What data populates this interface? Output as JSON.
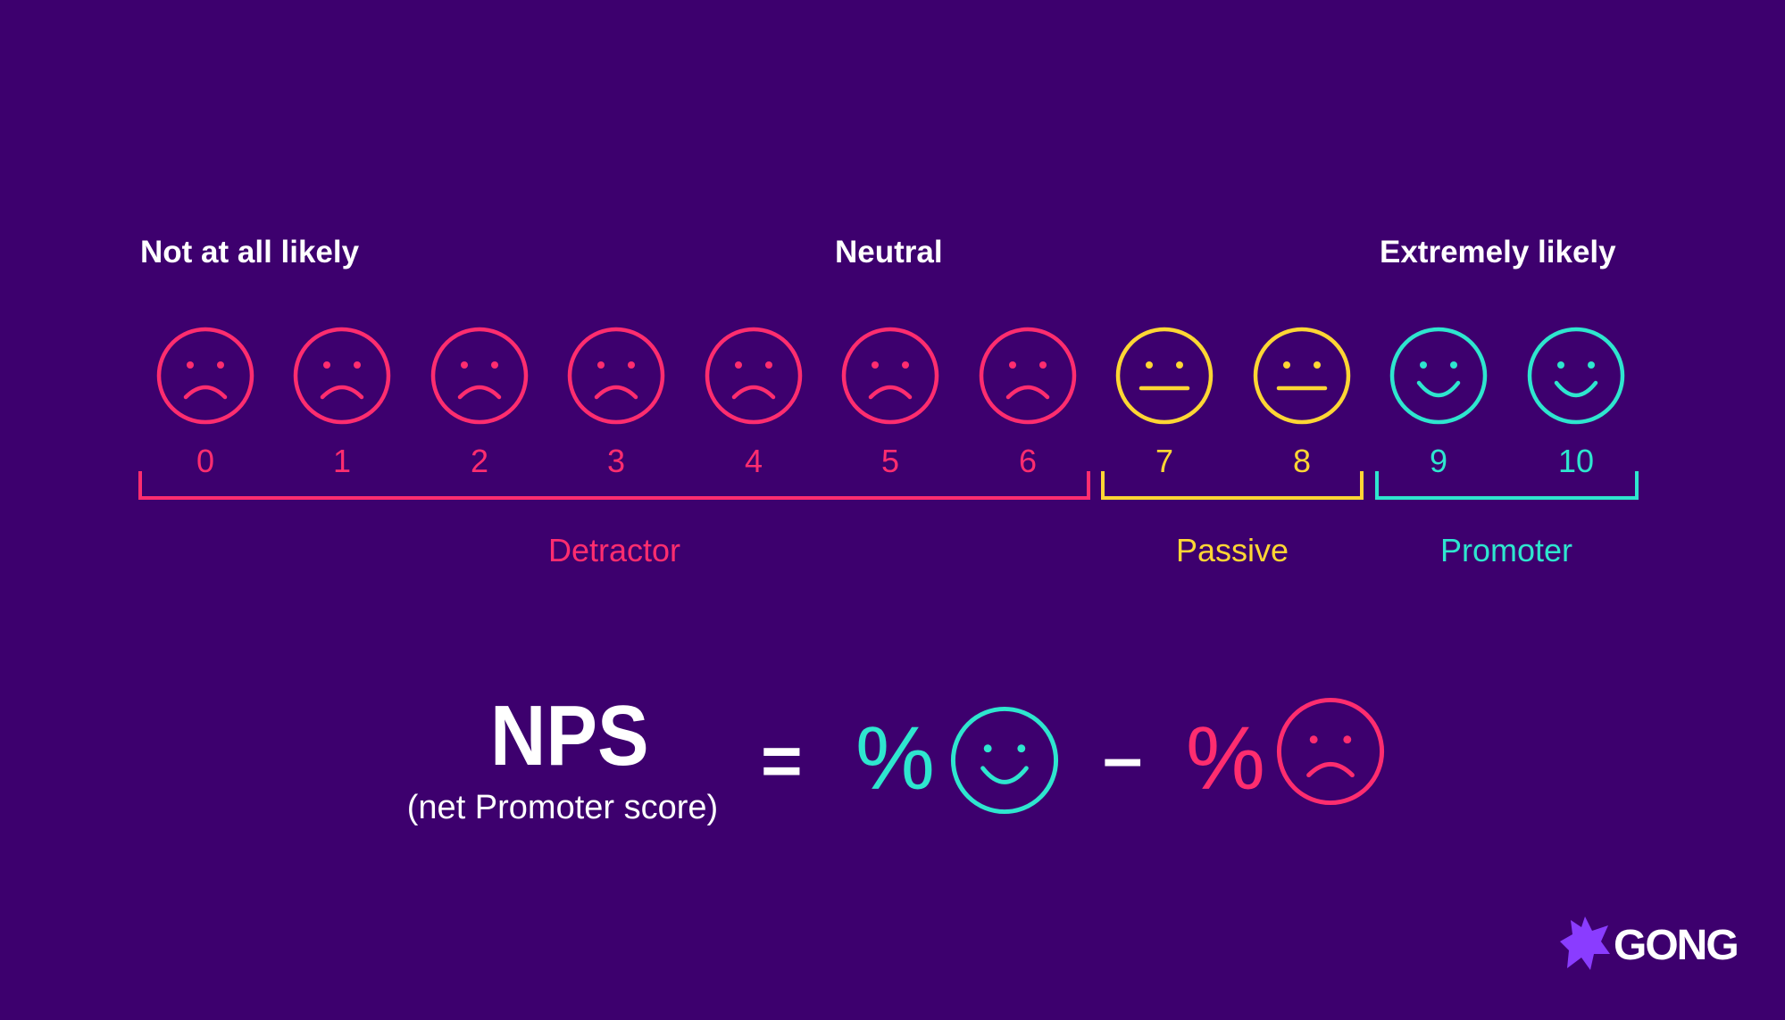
{
  "scale": {
    "headings": {
      "left": "Not at all likely",
      "middle": "Neutral",
      "right": "Extremely likely"
    },
    "scores": [
      "0",
      "1",
      "2",
      "3",
      "4",
      "5",
      "6",
      "7",
      "8",
      "9",
      "10"
    ],
    "groups": {
      "detractor": "Detractor",
      "passive": "Passive",
      "promoter": "Promoter"
    }
  },
  "formula": {
    "title": "NPS",
    "subtitle": "(net Promoter score)",
    "equals": "=",
    "percent_promoter": "%",
    "minus": "–",
    "percent_detractor": "%"
  },
  "logo": {
    "text": "GONG"
  },
  "colors": {
    "background": "#3d006e",
    "detractor": "#ff2d6f",
    "passive": "#ffd634",
    "promoter": "#2ee6cf",
    "logo_mark": "#8a3cff"
  },
  "icons": {
    "detractor": "sad-face-icon",
    "passive": "neutral-face-icon",
    "promoter": "happy-face-icon"
  }
}
